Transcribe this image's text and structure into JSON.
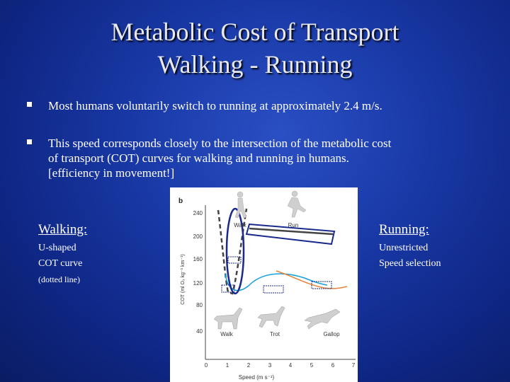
{
  "title": {
    "line1": "Metabolic Cost of Transport",
    "line2": "Walking - Running"
  },
  "bullets": [
    {
      "text": "Most humans voluntarily switch to running at approximately 2.4 m/s."
    },
    {
      "line1": "This speed corresponds closely to the intersection of the metabolic cost",
      "line2": "of transport (COT) curves for walking and running in humans.",
      "line3": "[efficiency in movement!]"
    }
  ],
  "left_note": {
    "heading": "Walking:",
    "line1": "U-shaped",
    "line2": "COT curve",
    "line3": "(dotted line)"
  },
  "right_note": {
    "heading": "Running:",
    "line1": "Unrestricted",
    "line2": "Speed selection"
  },
  "figure": {
    "panel_label": "b",
    "ylabel": "COT (ml O₂ kg⁻¹ km⁻¹)",
    "xlabel": "Speed (m s⁻¹)",
    "human_walk_label": "Walk",
    "human_run_label": "Run",
    "horse_walk_label": "Walk",
    "horse_trot_label": "Trot",
    "horse_gallop_label": "Gallop",
    "yticks": [
      "40",
      "80",
      "120",
      "160",
      "200",
      "240"
    ],
    "xticks": [
      "0",
      "1",
      "2",
      "3",
      "4",
      "5",
      "6",
      "7"
    ],
    "colors": {
      "human_walk": "#444444",
      "human_run": "#444444",
      "horse_walk": "#1aa0d8",
      "horse_trot": "#1aa0d8",
      "horse_gallop": "#e8823a",
      "annotation": "#1a2a8c"
    }
  }
}
